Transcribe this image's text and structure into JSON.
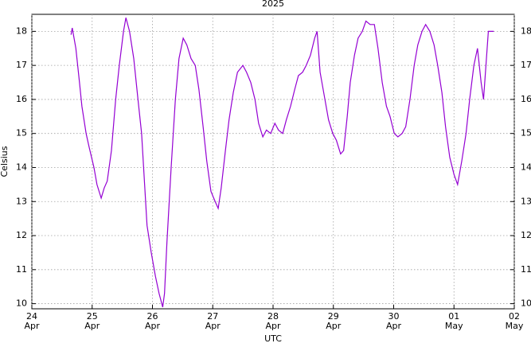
{
  "chart_data": {
    "type": "line",
    "title": "2025",
    "x_label": "UTC",
    "y_label": "Celsius",
    "series": [
      {
        "name": "Celsius",
        "color": "#9400d3",
        "x": [
          0.65,
          0.67,
          0.73,
          0.79,
          0.83,
          0.9,
          0.95,
          1.03,
          1.08,
          1.15,
          1.2,
          1.25,
          1.32,
          1.39,
          1.45,
          1.52,
          1.56,
          1.62,
          1.69,
          1.76,
          1.82,
          1.87,
          1.91,
          1.98,
          2.05,
          2.11,
          2.17,
          2.2,
          2.24,
          2.31,
          2.38,
          2.44,
          2.51,
          2.57,
          2.64,
          2.71,
          2.77,
          2.84,
          2.9,
          2.97,
          3.04,
          3.09,
          3.14,
          3.21,
          3.27,
          3.34,
          3.41,
          3.5,
          3.56,
          3.63,
          3.7,
          3.76,
          3.83,
          3.89,
          3.96,
          4.03,
          4.09,
          4.16,
          4.22,
          4.29,
          4.36,
          4.42,
          4.49,
          4.55,
          4.62,
          4.69,
          4.73,
          4.78,
          4.86,
          4.92,
          4.99,
          5.05,
          5.12,
          5.17,
          5.23,
          5.28,
          5.35,
          5.41,
          5.48,
          5.54,
          5.61,
          5.68,
          5.74,
          5.81,
          5.88,
          5.94,
          6.01,
          6.07,
          6.14,
          6.2,
          6.27,
          6.34,
          6.4,
          6.47,
          6.53,
          6.6,
          6.67,
          6.73,
          6.8,
          6.86,
          6.93,
          7.0,
          7.06,
          7.13,
          7.2,
          7.26,
          7.33,
          7.39,
          7.45,
          7.49,
          7.53,
          7.57,
          7.61,
          7.66
        ],
        "values": [
          17.9,
          18.1,
          17.5,
          16.5,
          15.8,
          15.0,
          14.6,
          14.0,
          13.5,
          13.1,
          13.4,
          13.6,
          14.5,
          16.0,
          17.0,
          18.0,
          18.4,
          18.0,
          17.2,
          16.0,
          15.0,
          13.5,
          12.3,
          11.5,
          10.8,
          10.3,
          9.9,
          10.3,
          11.8,
          14.0,
          16.0,
          17.2,
          17.8,
          17.6,
          17.2,
          17.0,
          16.3,
          15.2,
          14.2,
          13.3,
          13.0,
          12.8,
          13.4,
          14.5,
          15.4,
          16.2,
          16.8,
          17.0,
          16.8,
          16.5,
          16.0,
          15.3,
          14.9,
          15.1,
          15.0,
          15.3,
          15.1,
          15.0,
          15.4,
          15.8,
          16.3,
          16.7,
          16.8,
          17.0,
          17.3,
          17.8,
          18.0,
          16.8,
          16.0,
          15.4,
          15.0,
          14.8,
          14.4,
          14.5,
          15.5,
          16.5,
          17.3,
          17.8,
          18.0,
          18.3,
          18.2,
          18.2,
          17.5,
          16.5,
          15.8,
          15.5,
          15.0,
          14.9,
          15.0,
          15.2,
          16.0,
          17.0,
          17.6,
          18.0,
          18.2,
          18.0,
          17.6,
          17.0,
          16.2,
          15.2,
          14.3,
          13.8,
          13.5,
          14.2,
          15.0,
          16.0,
          17.0,
          17.5,
          16.5,
          16.0,
          17.0,
          18.0,
          18.0,
          18.0
        ]
      }
    ],
    "xlim": [
      0,
      8
    ],
    "xticks": [
      {
        "value": 0,
        "label": "24\nApr"
      },
      {
        "value": 1,
        "label": "25\nApr"
      },
      {
        "value": 2,
        "label": "26\nApr"
      },
      {
        "value": 3,
        "label": "27\nApr"
      },
      {
        "value": 4,
        "label": "28\nApr"
      },
      {
        "value": 5,
        "label": "29\nApr"
      },
      {
        "value": 6,
        "label": "30\nApr"
      },
      {
        "value": 7,
        "label": "01\nMay"
      },
      {
        "value": 8,
        "label": "02\nMay"
      }
    ],
    "ylim": [
      9.85,
      18.5
    ],
    "yticks": [
      10,
      11,
      12,
      13,
      14,
      15,
      16,
      17,
      18
    ],
    "y2lim": [
      9.85,
      18.5
    ],
    "y2ticks": [
      10,
      11,
      12,
      13,
      14,
      15,
      16,
      17,
      18
    ],
    "grid": true
  }
}
